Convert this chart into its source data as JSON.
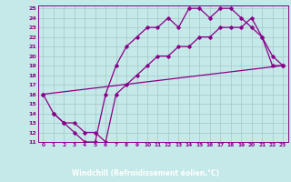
{
  "xlabel": "Windchill (Refroidissement éolien,°C)",
  "bg_color": "#c5e8e8",
  "plot_bg_color": "#c5e8e8",
  "line_color": "#880088",
  "grid_color": "#aacccc",
  "label_bg_color": "#660066",
  "label_text_color": "#ffffff",
  "xlim": [
    -0.5,
    23.5
  ],
  "ylim": [
    11,
    25.3
  ],
  "xticks": [
    0,
    1,
    2,
    3,
    4,
    5,
    6,
    7,
    8,
    9,
    10,
    11,
    12,
    13,
    14,
    15,
    16,
    17,
    18,
    19,
    20,
    21,
    22,
    23
  ],
  "yticks": [
    11,
    12,
    13,
    14,
    15,
    16,
    17,
    18,
    19,
    20,
    21,
    22,
    23,
    24,
    25
  ],
  "line1_x": [
    1,
    2,
    3,
    4,
    5,
    6,
    7,
    8,
    9,
    10,
    11,
    12,
    13,
    14,
    15,
    16,
    17,
    18,
    19,
    20,
    21,
    22,
    23
  ],
  "line1_y": [
    14,
    13,
    12,
    11,
    11,
    16,
    19,
    21,
    22,
    23,
    23,
    24,
    23,
    25,
    25,
    24,
    25,
    25,
    24,
    23,
    22,
    19,
    19
  ],
  "line2_x": [
    0,
    1,
    2,
    3,
    4,
    5,
    6,
    7,
    8,
    9,
    10,
    11,
    12,
    13,
    14,
    15,
    16,
    17,
    18,
    19,
    20,
    21,
    22,
    23
  ],
  "line2_y": [
    16,
    14,
    13,
    13,
    12,
    12,
    11,
    16,
    17,
    18,
    19,
    20,
    20,
    21,
    21,
    22,
    22,
    23,
    23,
    23,
    24,
    22,
    20,
    19
  ],
  "line3_x": [
    0,
    23
  ],
  "line3_y": [
    16,
    19
  ]
}
